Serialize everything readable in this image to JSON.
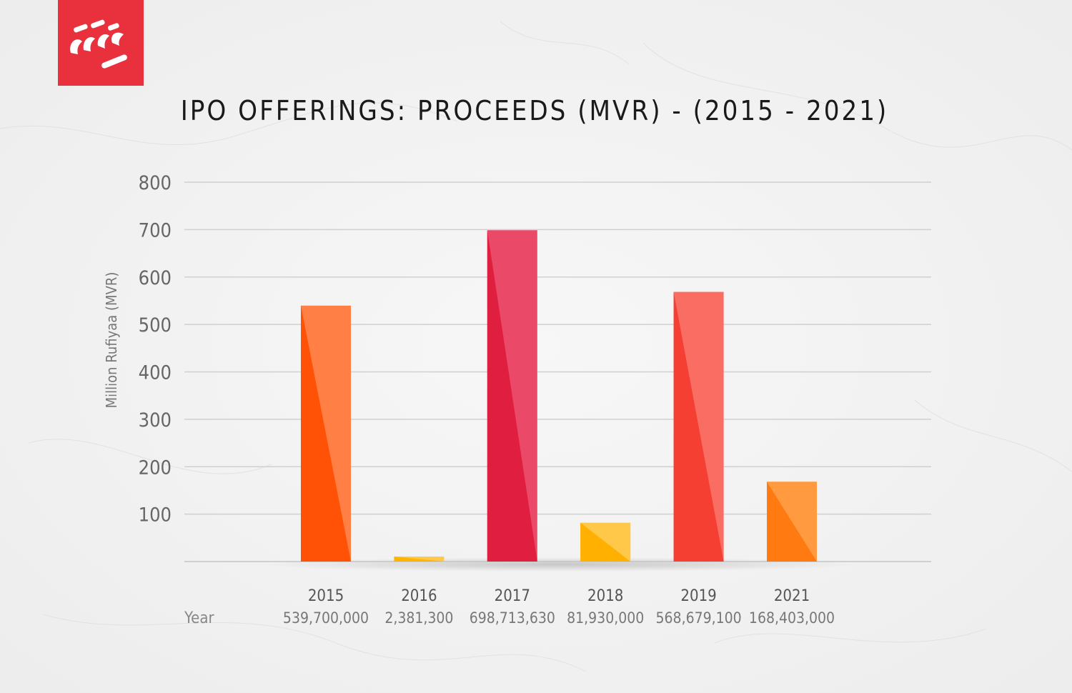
{
  "chart_data": {
    "type": "bar",
    "title": "IPO OFFERINGS: PROCEEDS (MVR) - (2015 - 2021)",
    "ylabel": "Million Rufiyaa (MVR)",
    "xlabel": "Year",
    "ylim": [
      0,
      800
    ],
    "yticks": [
      100,
      200,
      300,
      400,
      500,
      600,
      700,
      800
    ],
    "grid": true,
    "categories": [
      "2015",
      "2016",
      "2017",
      "2018",
      "2019",
      "2021"
    ],
    "values": [
      539.7,
      2.3813,
      698.71363,
      81.93,
      568.6791,
      168.403
    ],
    "value_labels": [
      "539,700,000",
      "2,381,300",
      "698,713,630",
      "81,930,000",
      "568,679,100",
      "168,403,000"
    ],
    "bar_colors": [
      {
        "light": "#ff7f45",
        "dark": "#ff5206"
      },
      {
        "light": "#ffc84a",
        "dark": "#ffb400"
      },
      {
        "light": "#ea4a68",
        "dark": "#e01f40"
      },
      {
        "light": "#ffc848",
        "dark": "#ffb000"
      },
      {
        "light": "#f96d63",
        "dark": "#f43f32"
      },
      {
        "light": "#ff9a40",
        "dark": "#ff7a10"
      }
    ]
  },
  "brand": {
    "color": "#e8313c",
    "icon": "brand-logo-icon"
  }
}
